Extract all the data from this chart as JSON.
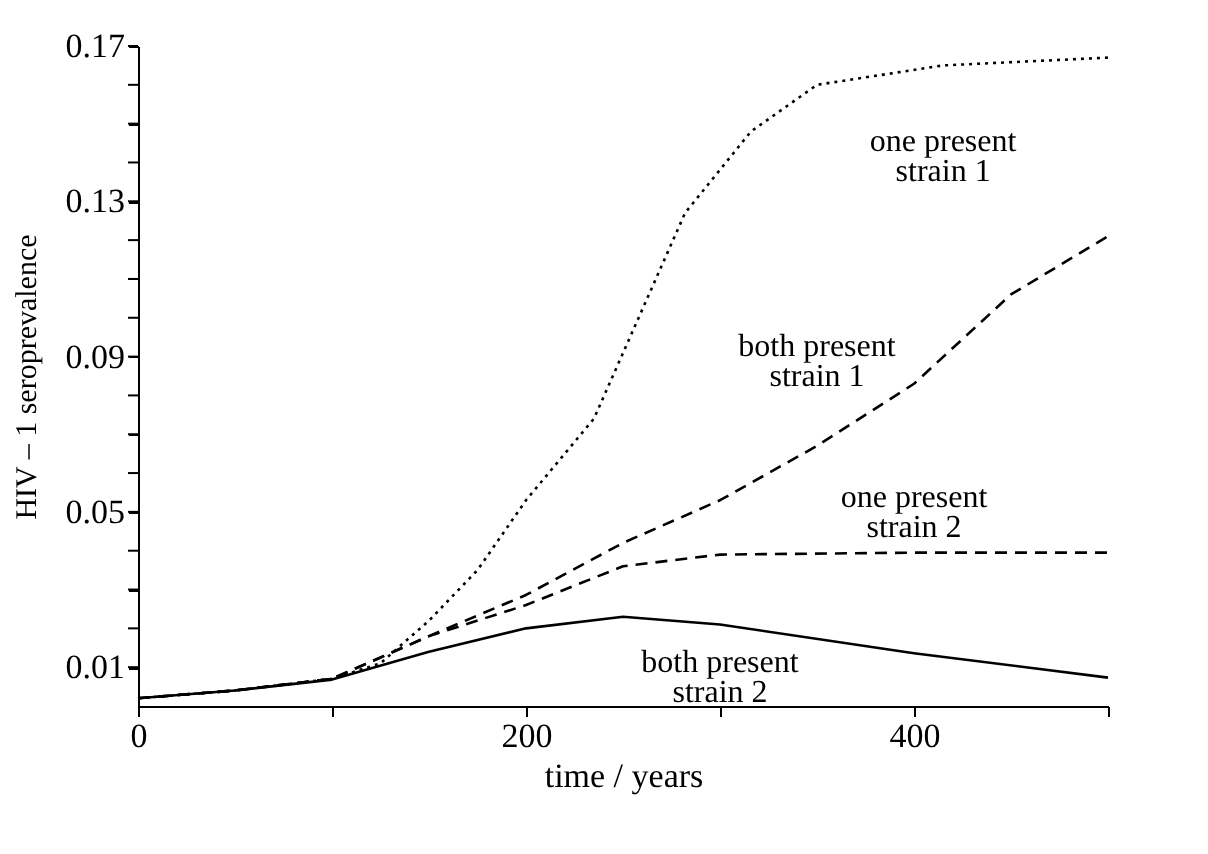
{
  "chart_data": {
    "type": "line",
    "xlabel": "time / years",
    "ylabel": "HIV – 1 seroprevalence",
    "xlim": [
      0,
      500
    ],
    "ylim": [
      0,
      0.17
    ],
    "xticks": [
      0,
      {
        "value": 100,
        "label": null
      },
      200,
      {
        "value": 300,
        "label": null
      },
      400,
      {
        "value": 500,
        "label": null
      }
    ],
    "yticks": [
      0.01,
      {
        "value": 0.02,
        "label": null
      },
      {
        "value": 0.03,
        "label": null
      },
      {
        "value": 0.04,
        "label": null
      },
      0.05,
      {
        "value": 0.06,
        "label": null
      },
      {
        "value": 0.07,
        "label": null
      },
      {
        "value": 0.08,
        "label": null
      },
      0.09,
      {
        "value": 0.1,
        "label": null
      },
      {
        "value": 0.11,
        "label": null
      },
      {
        "value": 0.12,
        "label": null
      },
      0.13,
      {
        "value": 0.14,
        "label": null
      },
      {
        "value": 0.15,
        "label": null
      },
      {
        "value": 0.16,
        "label": null
      },
      0.17
    ],
    "grid": false,
    "series": [
      {
        "name": "one present\nstrain 1",
        "color": "#000000",
        "line_style": "dotted",
        "x": [
          0,
          50,
          100,
          125,
          150,
          175,
          200,
          235,
          282,
          316,
          350,
          415,
          500
        ],
        "values": [
          0.002,
          0.004,
          0.007,
          0.011,
          0.022,
          0.035,
          0.053,
          0.074,
          0.127,
          0.148,
          0.16,
          0.165,
          0.167
        ]
      },
      {
        "name": "both present\nstrain 1",
        "color": "#000000",
        "line_style": "dashed",
        "x": [
          0,
          50,
          100,
          150,
          200,
          250,
          300,
          350,
          400,
          450,
          500
        ],
        "values": [
          0.002,
          0.004,
          0.007,
          0.018,
          0.0286,
          0.042,
          0.053,
          0.067,
          0.083,
          0.106,
          0.121
        ]
      },
      {
        "name": "one present\nstrain 2",
        "color": "#000000",
        "line_style": "dashed",
        "x": [
          0,
          50,
          100,
          150,
          200,
          250,
          300,
          400,
          500
        ],
        "values": [
          0.002,
          0.004,
          0.007,
          0.018,
          0.026,
          0.036,
          0.039,
          0.0395,
          0.0395
        ]
      },
      {
        "name": "both present\nstrain 2",
        "color": "#000000",
        "line_style": "solid",
        "x": [
          0,
          50,
          100,
          150,
          200,
          250,
          300,
          400,
          500
        ],
        "values": [
          0.002,
          0.004,
          0.0068,
          0.014,
          0.02,
          0.023,
          0.021,
          0.0136,
          0.0073
        ]
      }
    ]
  }
}
